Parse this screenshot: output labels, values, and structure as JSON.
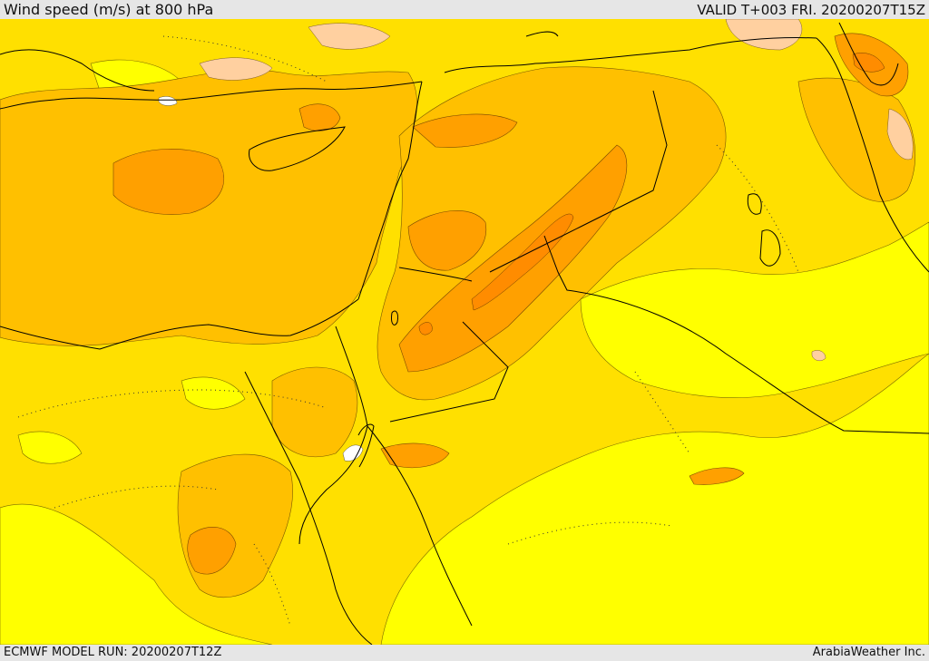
{
  "header": {
    "title": "Wind speed (m/s) at 800 hPa",
    "valid": "VALID T+003 FRI. 20200207T15Z"
  },
  "footer": {
    "model_run": "ECMWF MODEL RUN: 20200207T12Z",
    "credit": "ArabiaWeather Inc."
  },
  "map": {
    "colors": {
      "band_lightest": "#ffff00",
      "band_light": "#ffe000",
      "band_mid": "#ffc000",
      "band_strong": "#ffa000",
      "band_strongest": "#ff8c00",
      "band_peach": "#ffd0a0",
      "band_white": "#ffffff",
      "border": "#000000"
    }
  }
}
